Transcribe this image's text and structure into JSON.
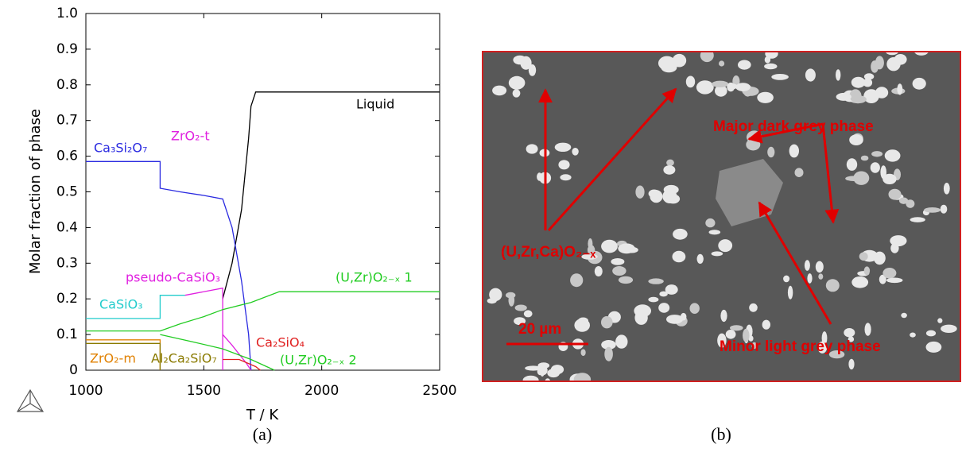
{
  "chart_data": {
    "type": "line",
    "xlabel": "T / K",
    "ylabel": "Molar fraction of phase",
    "xlim": [
      1000,
      2500
    ],
    "xticks": [
      1000,
      1500,
      2000,
      2500
    ],
    "ylim": [
      0,
      1
    ],
    "yticks": [
      0,
      0.1,
      0.2,
      0.3,
      0.4,
      0.5,
      0.6,
      0.7,
      0.8,
      0.9,
      {
        "value": 1,
        "label": "1.0"
      }
    ],
    "series": [
      {
        "name": "Liquid",
        "color": "#000000",
        "x": [
          1580,
          1620,
          1660,
          1690,
          1700,
          1720,
          1800,
          2500
        ],
        "values": [
          0.2,
          0.3,
          0.45,
          0.65,
          0.74,
          0.78,
          0.78,
          0.78
        ]
      },
      {
        "name": "Ca₃Si₂O₇",
        "color": "#2a2ae0",
        "x": [
          1000,
          1315,
          1315,
          1400,
          1500,
          1580,
          1620,
          1660,
          1690,
          1700
        ],
        "values": [
          0.585,
          0.585,
          0.51,
          0.5,
          0.49,
          0.48,
          0.4,
          0.25,
          0.1,
          0
        ]
      },
      {
        "name": "ZrO₂-t",
        "color": "#e020e0",
        "x": [
          1580,
          1620,
          1680,
          1700
        ],
        "values": [
          0.1,
          0.07,
          0.02,
          0
        ]
      },
      {
        "name": "pseudo-CaSiO₃",
        "color": "#e020e0",
        "x": [
          1420,
          1580,
          1580
        ],
        "values": [
          0.21,
          0.23,
          0
        ]
      },
      {
        "name": "CaSiO₃",
        "color": "#22cccc",
        "x": [
          1000,
          1315,
          1315,
          1420
        ],
        "values": [
          0.145,
          0.145,
          0.21,
          0.21
        ]
      },
      {
        "name": "(U,Zr)O₂₋ₓ 1",
        "color": "#22cc22",
        "x": [
          1000,
          1315,
          1400,
          1500,
          1580,
          1700,
          1820,
          2500
        ],
        "values": [
          0.11,
          0.11,
          0.13,
          0.15,
          0.17,
          0.19,
          0.22,
          0.22
        ]
      },
      {
        "name": "Ca₂SiO₄",
        "color": "#e02020",
        "x": [
          1580,
          1650,
          1720,
          1740
        ],
        "values": [
          0.03,
          0.03,
          0.01,
          0
        ]
      },
      {
        "name": "(U,Zr)O₂₋ₓ 2",
        "color": "#22cc22",
        "x": [
          1315,
          1450,
          1580,
          1700,
          1800
        ],
        "values": [
          0.1,
          0.08,
          0.06,
          0.03,
          0
        ]
      },
      {
        "name": "ZrO₂-m",
        "color": "#e08000",
        "x": [
          1000,
          1315,
          1315
        ],
        "values": [
          0.085,
          0.085,
          0
        ]
      },
      {
        "name": "Al₂Ca₂SiO₇",
        "color": "#8a7a00",
        "x": [
          1000,
          1315,
          1315
        ],
        "values": [
          0.075,
          0.075,
          0
        ]
      }
    ]
  },
  "micrograph": {
    "annotations": [
      "Major dark grey phase",
      "(U,Zr,Ca)O₂₋ₓ",
      "Minor light grey phase"
    ],
    "scale_bar": "20 µm"
  },
  "captions": [
    "(a)",
    "(b)"
  ]
}
